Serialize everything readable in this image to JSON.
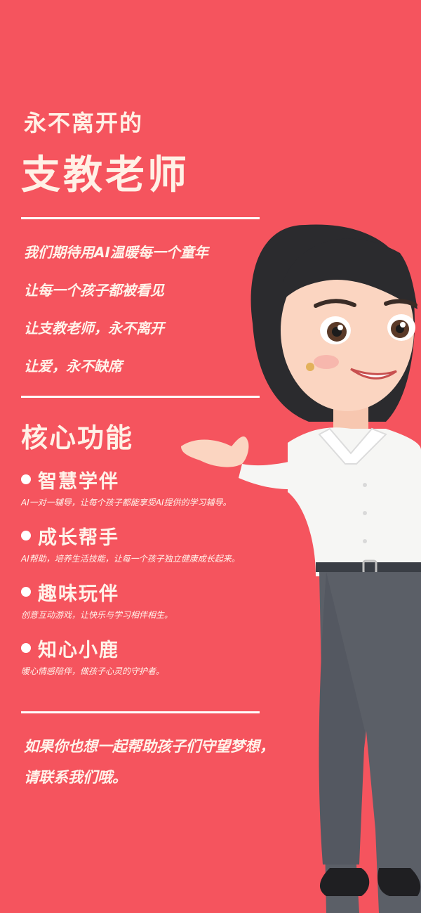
{
  "header": {
    "subtitle": "永不离开的",
    "title": "支教老师"
  },
  "mission_lines": [
    "我们期待用AI温暖每一个童年",
    "让每一个孩子都被看见",
    "让支教老师，永不离开",
    "让爱，永不缺席"
  ],
  "features_section": {
    "title": "核心功能",
    "items": [
      {
        "name": "智慧学伴",
        "desc": "AI一对一辅导，让每个孩子都能享受AI提供的学习辅导。"
      },
      {
        "name": "成长帮手",
        "desc": "AI帮助，培养生活技能，让每一个孩子独立健康成长起来。"
      },
      {
        "name": "趣味玩伴",
        "desc": "创意互动游戏，让快乐与学习相伴相生。"
      },
      {
        "name": "知心小鹿",
        "desc": "暖心情感陪伴，做孩子心灵的守护者。"
      }
    ]
  },
  "call_to_action": {
    "line1": "如果你也想一起帮助孩子们守望梦想，",
    "line2": "请联系我们哦。"
  },
  "colors": {
    "background": "#f5545e",
    "text": "#fff3ea"
  },
  "illustration": "teacher-character-illustration"
}
